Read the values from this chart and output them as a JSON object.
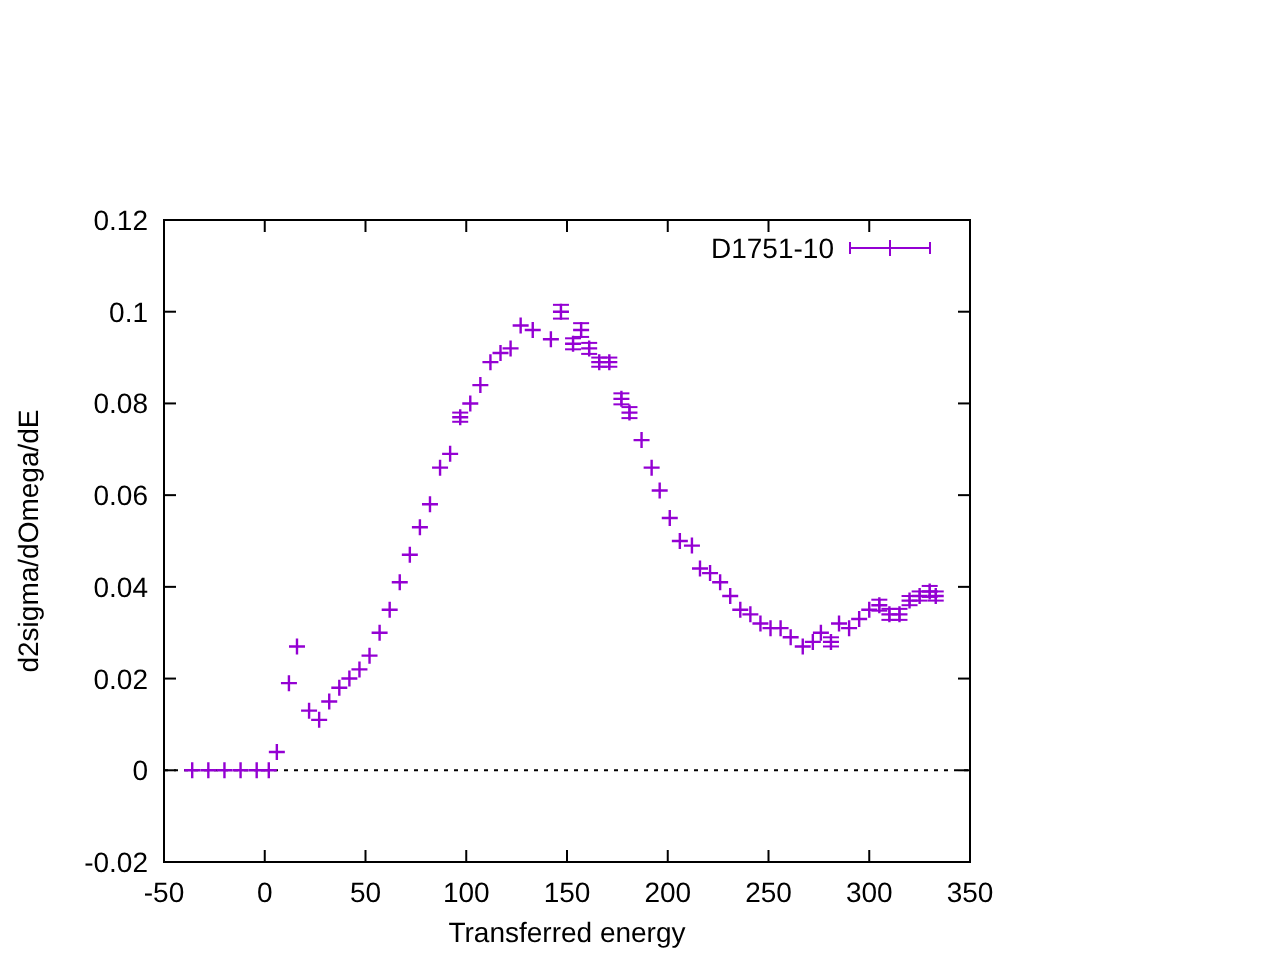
{
  "chart_data": {
    "type": "scatter",
    "xlabel": "Transferred energy",
    "ylabel": "d2sigma/dOmega/dE",
    "xlim": [
      -50,
      350
    ],
    "xticks": [
      -50,
      0,
      50,
      100,
      150,
      200,
      250,
      300,
      350
    ],
    "ylim": [
      -0.02,
      0.12
    ],
    "yticks": [
      -0.02,
      0,
      0.02,
      0.04,
      0.06,
      0.08,
      0.1,
      0.12
    ],
    "marker": "cross",
    "legend": "top right",
    "grid": false,
    "ref_lines": [
      {
        "axis": "y",
        "value": 0,
        "color": "#000000",
        "line_style": "dotted"
      }
    ],
    "series": [
      {
        "name": "D1751-10",
        "color": "#9400d3",
        "x": [
          -36,
          -28,
          -20,
          -12,
          -4,
          2,
          6,
          12,
          16,
          22,
          27,
          32,
          37,
          42,
          47,
          52,
          57,
          62,
          67,
          72,
          77,
          82,
          87,
          92,
          97,
          102,
          107,
          112,
          117,
          122,
          127,
          133,
          142,
          147,
          153,
          157,
          161,
          166,
          171,
          177,
          181,
          187,
          192,
          196,
          201,
          206,
          212,
          216,
          221,
          226,
          231,
          236,
          241,
          246,
          251,
          256,
          261,
          267,
          272,
          276,
          281,
          285,
          290,
          295,
          300,
          305,
          310,
          315,
          320,
          325,
          330,
          333
        ],
        "values": [
          0,
          0,
          0,
          0,
          0,
          0,
          0.004,
          0.019,
          0.027,
          0.013,
          0.011,
          0.015,
          0.018,
          0.02,
          0.022,
          0.025,
          0.03,
          0.035,
          0.041,
          0.047,
          0.053,
          0.058,
          0.066,
          0.069,
          0.077,
          0.08,
          0.084,
          0.089,
          0.091,
          0.092,
          0.097,
          0.096,
          0.094,
          0.1,
          0.093,
          0.096,
          0.092,
          0.089,
          0.089,
          0.081,
          0.078,
          0.072,
          0.066,
          0.061,
          0.055,
          0.05,
          0.049,
          0.044,
          0.043,
          0.041,
          0.038,
          0.035,
          0.034,
          0.032,
          0.031,
          0.031,
          0.029,
          0.027,
          0.028,
          0.03,
          0.028,
          0.032,
          0.031,
          0.033,
          0.035,
          0.036,
          0.034,
          0.034,
          0.037,
          0.038,
          0.039,
          0.038
        ],
        "errors": [
          null,
          null,
          null,
          null,
          null,
          null,
          null,
          null,
          null,
          null,
          null,
          null,
          null,
          null,
          null,
          null,
          null,
          null,
          null,
          null,
          null,
          null,
          null,
          null,
          0.001,
          null,
          null,
          null,
          null,
          null,
          null,
          null,
          null,
          0.0015,
          0.0012,
          0.0015,
          0.0012,
          0.001,
          0.001,
          0.0012,
          0.0012,
          null,
          null,
          null,
          null,
          null,
          null,
          null,
          null,
          null,
          null,
          null,
          null,
          null,
          null,
          null,
          null,
          null,
          null,
          null,
          0.001,
          null,
          null,
          null,
          null,
          0.0012,
          0.0012,
          0.0012,
          0.001,
          0.001,
          0.0012,
          0.001
        ]
      }
    ]
  }
}
